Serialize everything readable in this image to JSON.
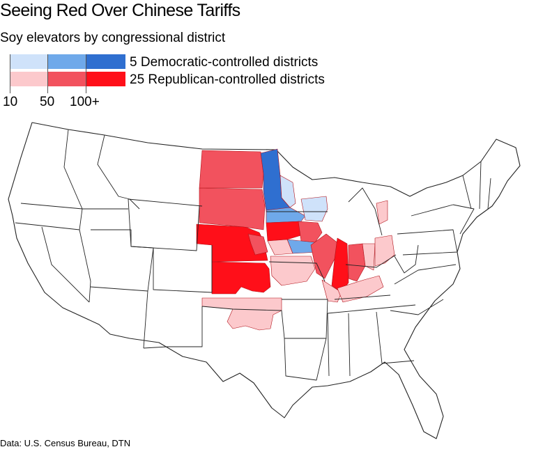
{
  "title": "Seeing Red Over Chinese Tariffs",
  "subtitle": "Soy elevators by congressional district",
  "legend": {
    "democratic_label": "5 Democratic-controlled districts",
    "republican_label": "25 Republican-controlled districts",
    "scale_ticks": [
      "10",
      "50",
      "100+"
    ],
    "democratic_colors": [
      "#cfe2fa",
      "#6fa9ea",
      "#2f6fd0"
    ],
    "republican_colors": [
      "#fcc9cc",
      "#f2525e",
      "#ff0f19"
    ]
  },
  "source": "Data: U.S. Census Bureau, DTN"
}
